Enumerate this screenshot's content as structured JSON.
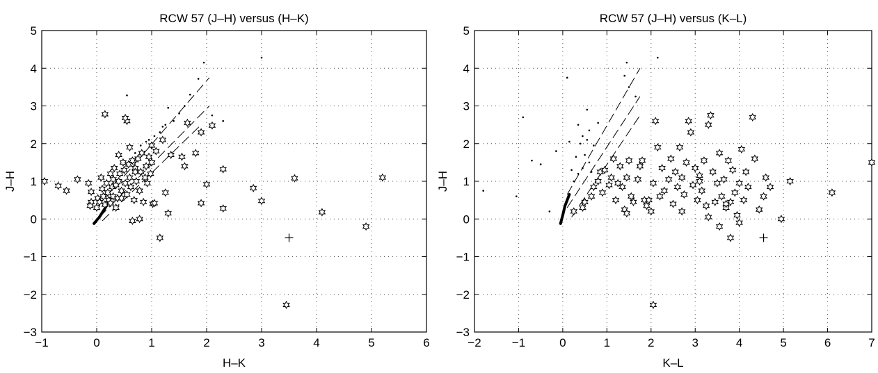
{
  "chart_data": [
    {
      "type": "scatter",
      "title": "RCW 57 (J–H) versus (H–K)",
      "xlabel": "H–K",
      "ylabel": "J–H",
      "xlim": [
        -1,
        6
      ],
      "ylim": [
        -3,
        5
      ],
      "xticks": [
        "−1",
        "0",
        "1",
        "2",
        "3",
        "4",
        "5",
        "6"
      ],
      "yticks": [
        "−3",
        "−2",
        "−1",
        "0",
        "1",
        "2",
        "3",
        "4",
        "5"
      ],
      "xtick_values": [
        -1,
        0,
        1,
        2,
        3,
        4,
        5,
        6
      ],
      "ytick_values": [
        -3,
        -2,
        -1,
        0,
        1,
        2,
        3,
        4,
        5
      ],
      "grid": "dotted",
      "legend": "none",
      "series": [
        {
          "marker": "star",
          "points": [
            [
              -0.95,
              1.0
            ],
            [
              -0.7,
              0.88
            ],
            [
              -0.55,
              0.75
            ],
            [
              -0.35,
              1.05
            ],
            [
              -0.15,
              0.95
            ],
            [
              -0.1,
              0.72
            ],
            [
              -0.1,
              0.45
            ],
            [
              -0.12,
              0.35
            ],
            [
              0.0,
              0.3
            ],
            [
              0.02,
              0.55
            ],
            [
              0.05,
              0.45
            ],
            [
              0.08,
              1.1
            ],
            [
              0.1,
              0.8
            ],
            [
              0.12,
              0.6
            ],
            [
              0.15,
              0.38
            ],
            [
              0.18,
              0.95
            ],
            [
              0.2,
              0.7
            ],
            [
              0.22,
              0.5
            ],
            [
              0.25,
              1.2
            ],
            [
              0.28,
              0.85
            ],
            [
              0.3,
              0.6
            ],
            [
              0.32,
              1.35
            ],
            [
              0.35,
              0.9
            ],
            [
              0.38,
              0.55
            ],
            [
              0.4,
              1.0
            ],
            [
              0.42,
              1.2
            ],
            [
              0.45,
              0.75
            ],
            [
              0.48,
              1.5
            ],
            [
              0.5,
              1.3
            ],
            [
              0.52,
              0.95
            ],
            [
              0.55,
              0.65
            ],
            [
              0.58,
              1.45
            ],
            [
              0.6,
              1.1
            ],
            [
              0.62,
              0.85
            ],
            [
              0.65,
              1.55
            ],
            [
              0.68,
              0.5
            ],
            [
              0.7,
              1.35
            ],
            [
              0.72,
              1.0
            ],
            [
              0.75,
              1.6
            ],
            [
              0.78,
              0.75
            ],
            [
              0.8,
              1.25
            ],
            [
              0.82,
              1.75
            ],
            [
              0.85,
              0.45
            ],
            [
              0.88,
              1.1
            ],
            [
              0.9,
              1.4
            ],
            [
              0.92,
              0.95
            ],
            [
              0.95,
              1.65
            ],
            [
              0.98,
              1.2
            ],
            [
              1.0,
              1.5
            ],
            [
              1.02,
              0.4
            ],
            [
              1.05,
              0.42
            ],
            [
              1.08,
              1.8
            ],
            [
              0.3,
              1.05
            ],
            [
              0.35,
              0.3
            ],
            [
              0.6,
              1.9
            ],
            [
              0.55,
              2.6
            ],
            [
              0.52,
              2.68
            ],
            [
              0.15,
              2.78
            ],
            [
              0.65,
              -0.05
            ],
            [
              0.78,
              0.0
            ],
            [
              1.15,
              -0.5
            ],
            [
              1.3,
              0.15
            ],
            [
              1.25,
              0.7
            ],
            [
              1.55,
              1.65
            ],
            [
              1.6,
              1.4
            ],
            [
              1.65,
              2.55
            ],
            [
              1.8,
              1.75
            ],
            [
              1.9,
              2.3
            ],
            [
              1.9,
              0.42
            ],
            [
              2.0,
              0.92
            ],
            [
              2.1,
              2.48
            ],
            [
              2.3,
              1.32
            ],
            [
              2.3,
              0.28
            ],
            [
              2.85,
              0.82
            ],
            [
              3.0,
              0.48
            ],
            [
              3.45,
              -2.28
            ],
            [
              3.6,
              1.08
            ],
            [
              4.1,
              0.18
            ],
            [
              4.9,
              -0.2
            ],
            [
              5.2,
              1.1
            ],
            [
              1.2,
              2.1
            ],
            [
              1.35,
              1.7
            ],
            [
              1.0,
              1.95
            ],
            [
              0.4,
              1.7
            ],
            [
              0.7,
              1.25
            ],
            [
              0.45,
              0.55
            ],
            [
              0.25,
              0.42
            ]
          ]
        },
        {
          "marker": "dot",
          "points": [
            [
              0.55,
              3.28
            ],
            [
              1.15,
              2.3
            ],
            [
              1.3,
              2.95
            ],
            [
              1.85,
              3.72
            ],
            [
              1.95,
              4.15
            ],
            [
              2.1,
              2.75
            ],
            [
              2.3,
              2.6
            ],
            [
              3.0,
              4.28
            ],
            [
              0.9,
              2.05
            ],
            [
              1.05,
              2.2
            ],
            [
              1.2,
              2.45
            ],
            [
              1.4,
              2.6
            ],
            [
              0.8,
              1.95
            ],
            [
              1.5,
              2.8
            ],
            [
              1.7,
              3.3
            ],
            [
              0.7,
              1.75
            ],
            [
              1.0,
              1.9
            ],
            [
              1.25,
              2.5
            ],
            [
              1.6,
              3.0
            ],
            [
              0.95,
              2.1
            ]
          ]
        },
        {
          "marker": "plus",
          "points": [
            [
              3.5,
              -0.5
            ]
          ]
        }
      ],
      "lines": [
        {
          "style": "dashed",
          "points": [
            [
              0.0,
              0.3
            ],
            [
              2.05,
              3.75
            ]
          ]
        },
        {
          "style": "dashed",
          "points": [
            [
              0.05,
              0.05
            ],
            [
              2.05,
              3.0
            ]
          ]
        },
        {
          "style": "dashed",
          "points": [
            [
              0.1,
              -0.05
            ],
            [
              1.9,
              2.5
            ]
          ]
        },
        {
          "style": "thick",
          "points": [
            [
              -0.05,
              -0.12
            ],
            [
              0.05,
              0.05
            ],
            [
              0.15,
              0.28
            ],
            [
              0.25,
              0.55
            ]
          ]
        }
      ]
    },
    {
      "type": "scatter",
      "title": "RCW 57 (J–H) versus (K–L)",
      "xlabel": "K–L",
      "ylabel": "J–H",
      "xlim": [
        -2,
        7
      ],
      "ylim": [
        -3,
        5
      ],
      "xticks": [
        "−2",
        "−1",
        "0",
        "1",
        "2",
        "3",
        "4",
        "5",
        "6",
        "7"
      ],
      "yticks": [
        "−3",
        "−2",
        "−1",
        "0",
        "1",
        "2",
        "3",
        "4",
        "5"
      ],
      "xtick_values": [
        -2,
        -1,
        0,
        1,
        2,
        3,
        4,
        5,
        6,
        7
      ],
      "ytick_values": [
        -3,
        -2,
        -1,
        0,
        1,
        2,
        3,
        4,
        5
      ],
      "grid": "dotted",
      "legend": "none",
      "series": [
        {
          "marker": "star",
          "points": [
            [
              0.25,
              0.2
            ],
            [
              0.45,
              0.3
            ],
            [
              0.5,
              0.45
            ],
            [
              0.65,
              0.6
            ],
            [
              0.7,
              0.85
            ],
            [
              0.8,
              1.0
            ],
            [
              0.85,
              1.25
            ],
            [
              0.9,
              0.7
            ],
            [
              0.95,
              1.3
            ],
            [
              1.05,
              0.9
            ],
            [
              1.1,
              1.1
            ],
            [
              1.15,
              1.6
            ],
            [
              1.2,
              0.5
            ],
            [
              1.25,
              0.95
            ],
            [
              1.3,
              1.4
            ],
            [
              1.35,
              0.85
            ],
            [
              1.4,
              0.25
            ],
            [
              1.45,
              0.15
            ],
            [
              1.45,
              1.1
            ],
            [
              1.5,
              1.55
            ],
            [
              1.55,
              0.6
            ],
            [
              1.6,
              0.45
            ],
            [
              1.7,
              1.05
            ],
            [
              1.75,
              1.4
            ],
            [
              1.8,
              1.55
            ],
            [
              1.85,
              0.5
            ],
            [
              1.9,
              0.35
            ],
            [
              1.95,
              0.5
            ],
            [
              2.0,
              0.2
            ],
            [
              2.05,
              0.95
            ],
            [
              2.1,
              2.6
            ],
            [
              2.15,
              1.9
            ],
            [
              2.2,
              0.6
            ],
            [
              2.25,
              1.35
            ],
            [
              2.3,
              0.75
            ],
            [
              2.4,
              1.05
            ],
            [
              2.45,
              1.6
            ],
            [
              2.5,
              0.4
            ],
            [
              2.55,
              1.25
            ],
            [
              2.6,
              0.85
            ],
            [
              2.65,
              1.9
            ],
            [
              2.7,
              1.1
            ],
            [
              2.75,
              0.65
            ],
            [
              2.8,
              1.5
            ],
            [
              2.85,
              2.6
            ],
            [
              2.9,
              2.3
            ],
            [
              2.95,
              0.9
            ],
            [
              3.0,
              1.35
            ],
            [
              3.05,
              0.5
            ],
            [
              3.1,
              1.15
            ],
            [
              3.15,
              0.75
            ],
            [
              3.2,
              1.55
            ],
            [
              3.25,
              0.35
            ],
            [
              3.3,
              2.5
            ],
            [
              3.35,
              2.75
            ],
            [
              3.4,
              1.25
            ],
            [
              3.45,
              0.45
            ],
            [
              3.5,
              0.95
            ],
            [
              3.55,
              1.75
            ],
            [
              3.6,
              0.6
            ],
            [
              3.65,
              1.05
            ],
            [
              3.7,
              0.3
            ],
            [
              3.75,
              1.55
            ],
            [
              3.8,
              0.45
            ],
            [
              3.85,
              1.3
            ],
            [
              3.9,
              0.7
            ],
            [
              3.95,
              0.1
            ],
            [
              4.0,
              0.95
            ],
            [
              4.05,
              1.85
            ],
            [
              4.1,
              0.5
            ],
            [
              4.15,
              1.25
            ],
            [
              4.2,
              0.85
            ],
            [
              4.3,
              2.7
            ],
            [
              4.35,
              1.6
            ],
            [
              4.45,
              0.25
            ],
            [
              4.55,
              0.6
            ],
            [
              4.6,
              1.1
            ],
            [
              4.7,
              0.85
            ],
            [
              4.95,
              0.0
            ],
            [
              5.15,
              1.0
            ],
            [
              6.1,
              0.7
            ],
            [
              7.0,
              1.5
            ],
            [
              2.05,
              -2.28
            ],
            [
              3.55,
              -0.2
            ],
            [
              3.8,
              -0.5
            ],
            [
              4.0,
              -0.1
            ],
            [
              3.3,
              0.05
            ],
            [
              2.7,
              0.2
            ],
            [
              3.1,
              1.0
            ],
            [
              3.7,
              0.4
            ]
          ]
        },
        {
          "marker": "dot",
          "points": [
            [
              -1.8,
              0.75
            ],
            [
              -1.05,
              0.6
            ],
            [
              -0.9,
              2.7
            ],
            [
              -0.7,
              1.55
            ],
            [
              -0.5,
              1.45
            ],
            [
              -0.3,
              0.2
            ],
            [
              -0.15,
              1.8
            ],
            [
              0.1,
              3.75
            ],
            [
              0.35,
              2.5
            ],
            [
              0.45,
              2.2
            ],
            [
              0.55,
              2.9
            ],
            [
              0.6,
              2.35
            ],
            [
              0.7,
              1.95
            ],
            [
              0.8,
              2.55
            ],
            [
              1.4,
              3.8
            ],
            [
              1.45,
              4.15
            ],
            [
              1.5,
              3.5
            ],
            [
              1.65,
              3.25
            ],
            [
              2.15,
              4.28
            ],
            [
              0.3,
              1.65
            ],
            [
              0.4,
              2.0
            ],
            [
              0.5,
              1.7
            ],
            [
              0.6,
              1.5
            ],
            [
              0.65,
              1.25
            ],
            [
              0.2,
              1.3
            ],
            [
              0.25,
              1.0
            ],
            [
              0.35,
              1.2
            ],
            [
              0.15,
              2.05
            ],
            [
              0.45,
              1.35
            ],
            [
              0.55,
              2.1
            ]
          ]
        },
        {
          "marker": "plus",
          "points": [
            [
              4.55,
              -0.5
            ]
          ]
        }
      ],
      "lines": [
        {
          "style": "dashed",
          "points": [
            [
              0.1,
              0.65
            ],
            [
              1.75,
              4.0
            ]
          ]
        },
        {
          "style": "dashed",
          "points": [
            [
              0.1,
              0.3
            ],
            [
              1.75,
              3.25
            ]
          ]
        },
        {
          "style": "dashed",
          "points": [
            [
              0.2,
              0.05
            ],
            [
              1.75,
              2.75
            ]
          ]
        },
        {
          "style": "thick",
          "points": [
            [
              -0.05,
              -0.12
            ],
            [
              0.0,
              0.1
            ],
            [
              0.05,
              0.35
            ],
            [
              0.15,
              0.65
            ]
          ]
        }
      ]
    }
  ]
}
